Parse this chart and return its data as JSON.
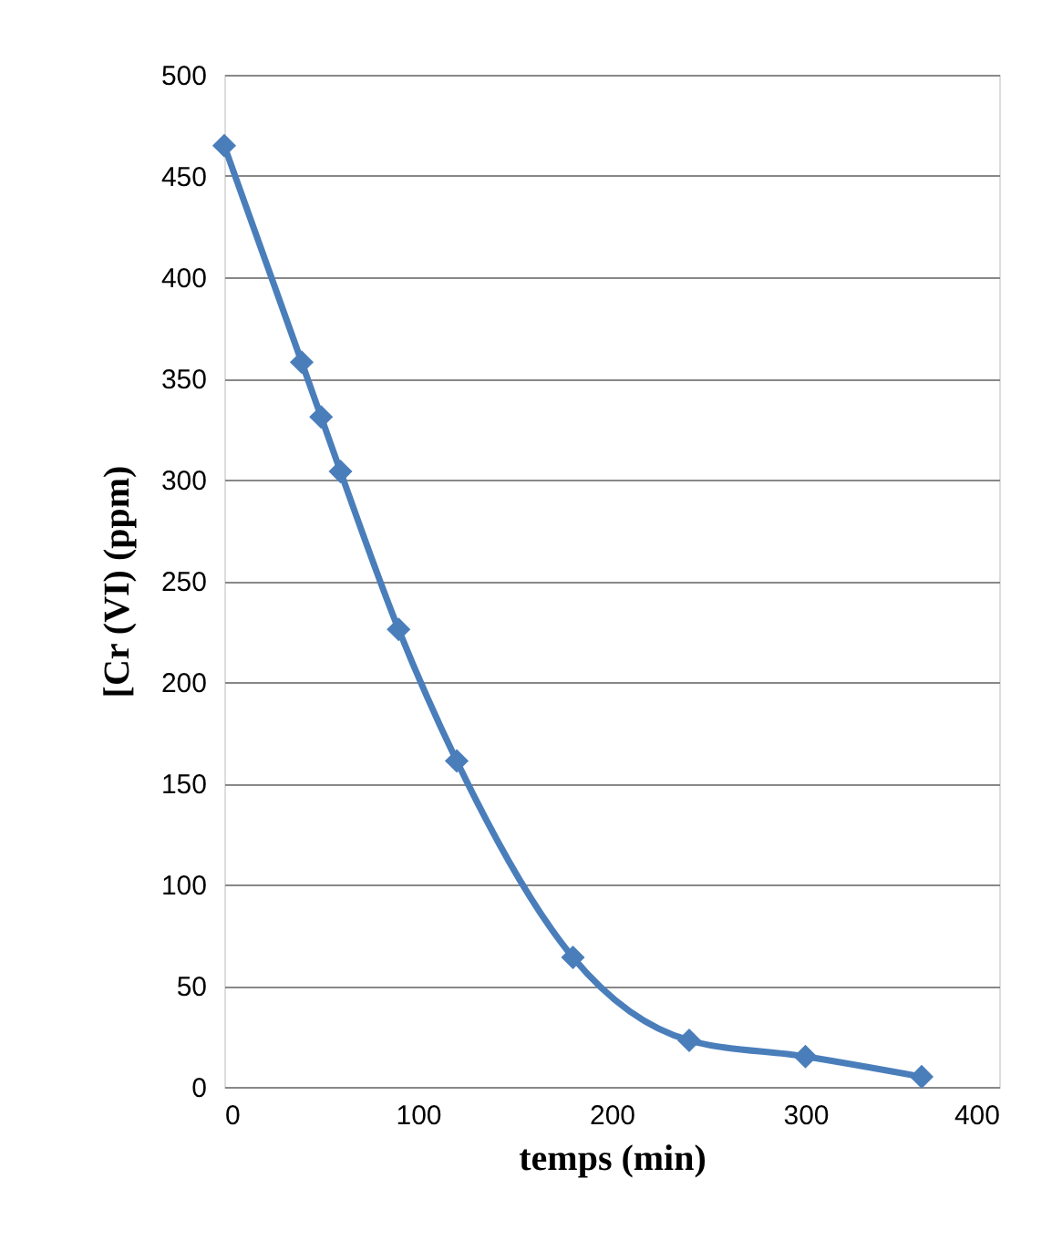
{
  "chart_data": {
    "type": "line",
    "xlabel": "temps (min)",
    "ylabel": "[Cr (VI)  (ppm)",
    "x": [
      0,
      40,
      50,
      60,
      90,
      120,
      180,
      240,
      300,
      360
    ],
    "series": [
      {
        "color": "#4a7ebb",
        "values": [
          465,
          358,
          331,
          304,
          226,
          161,
          64,
          23,
          15,
          5
        ]
      }
    ],
    "xlim": [
      0,
      400
    ],
    "xticks": [
      0,
      100,
      200,
      300,
      400
    ],
    "ylim": [
      0,
      500
    ],
    "yticks": [
      0,
      50,
      100,
      150,
      200,
      250,
      300,
      350,
      400,
      450,
      500
    ],
    "grid": "y",
    "marker": "diamond",
    "line_style": "solid"
  }
}
